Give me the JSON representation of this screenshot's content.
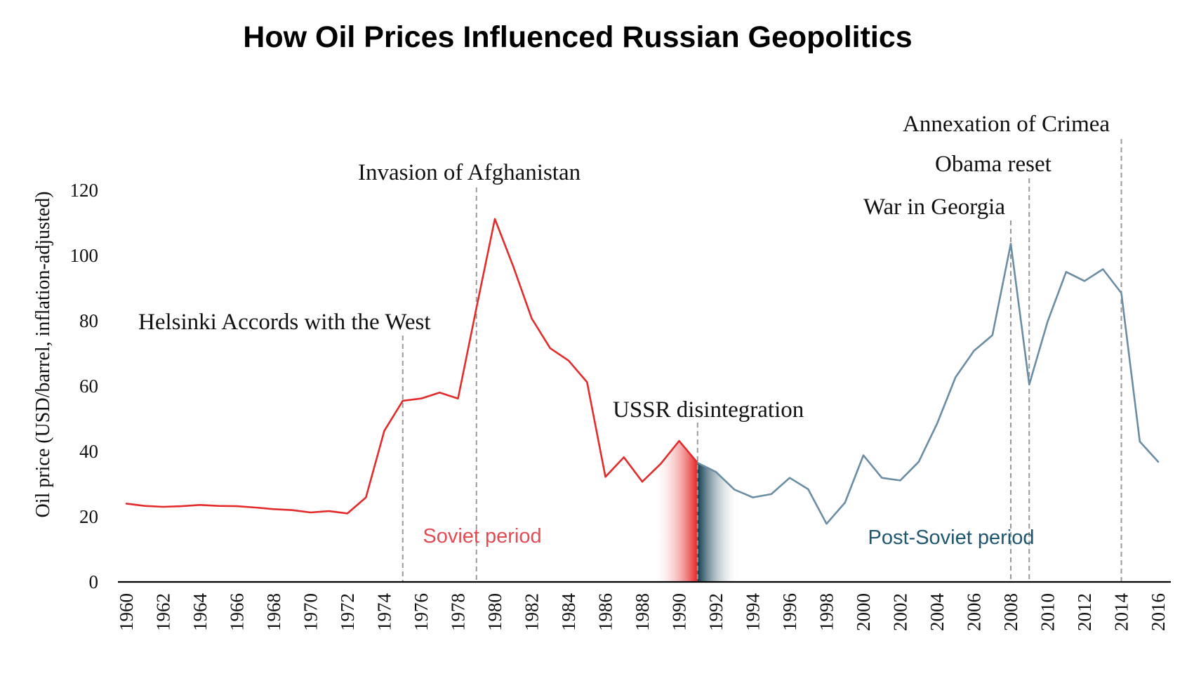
{
  "chart_data": {
    "type": "line",
    "title": "How Oil Prices Influenced Russian Geopolitics",
    "ylabel": "Oil price (USD/barrel, inflation-adjusted)",
    "xlabel": "",
    "xlim": [
      1960,
      2016
    ],
    "ylim": [
      0,
      120
    ],
    "x_ticks": [
      1960,
      1962,
      1964,
      1966,
      1968,
      1970,
      1972,
      1974,
      1976,
      1978,
      1980,
      1982,
      1984,
      1986,
      1988,
      1990,
      1992,
      1994,
      1996,
      1998,
      2000,
      2002,
      2004,
      2006,
      2008,
      2010,
      2012,
      2014,
      2016
    ],
    "y_ticks": [
      0,
      20,
      40,
      60,
      80,
      100,
      120
    ],
    "grid": false,
    "series": [
      {
        "color": "#e32b2b",
        "x": [
          1960,
          1961,
          1962,
          1963,
          1964,
          1965,
          1966,
          1967,
          1968,
          1969,
          1970,
          1971,
          1972,
          1973,
          1974,
          1975,
          1976,
          1977,
          1978,
          1979,
          1980,
          1981,
          1982,
          1983,
          1984,
          1985,
          1986,
          1987,
          1988,
          1989,
          1990,
          1991
        ],
        "y": [
          24.0,
          23.3,
          23.0,
          23.2,
          23.6,
          23.3,
          23.2,
          22.8,
          22.3,
          22.0,
          21.3,
          21.7,
          21.0,
          25.9,
          46.3,
          55.5,
          56.2,
          58.0,
          56.2,
          84.0,
          111.2,
          96.6,
          80.7,
          71.6,
          67.8,
          61.2,
          32.2,
          38.2,
          30.7,
          36.2,
          43.2,
          36.5
        ]
      },
      {
        "color": "#6a8da3",
        "x": [
          1991,
          1992,
          1993,
          1994,
          1995,
          1996,
          1997,
          1998,
          1999,
          2000,
          2001,
          2002,
          2003,
          2004,
          2005,
          2006,
          2007,
          2008,
          2009,
          2010,
          2011,
          2012,
          2013,
          2014,
          2015,
          2016
        ],
        "y": [
          36.5,
          33.7,
          28.3,
          25.9,
          26.9,
          31.9,
          28.4,
          17.8,
          24.3,
          38.8,
          31.9,
          31.1,
          36.8,
          48.5,
          62.7,
          70.8,
          75.6,
          103.6,
          60.5,
          79.8,
          95.0,
          92.2,
          95.8,
          88.5,
          43.0,
          36.8
        ]
      }
    ],
    "annotations": [
      {
        "label": "Helsinki Accords with the West",
        "year": 1975
      },
      {
        "label": "Invasion of Afghanistan",
        "year": 1979
      },
      {
        "label": "USSR disintegration",
        "year": 1991
      },
      {
        "label": "War in Georgia",
        "year": 2008
      },
      {
        "label": "Obama reset",
        "year": 2009
      },
      {
        "label": "Annexation of Crimea",
        "year": 2014
      }
    ],
    "periods": [
      {
        "label": "Soviet period",
        "color": "#e34b55"
      },
      {
        "label": "Post-Soviet period",
        "color": "#1f5670"
      }
    ]
  }
}
